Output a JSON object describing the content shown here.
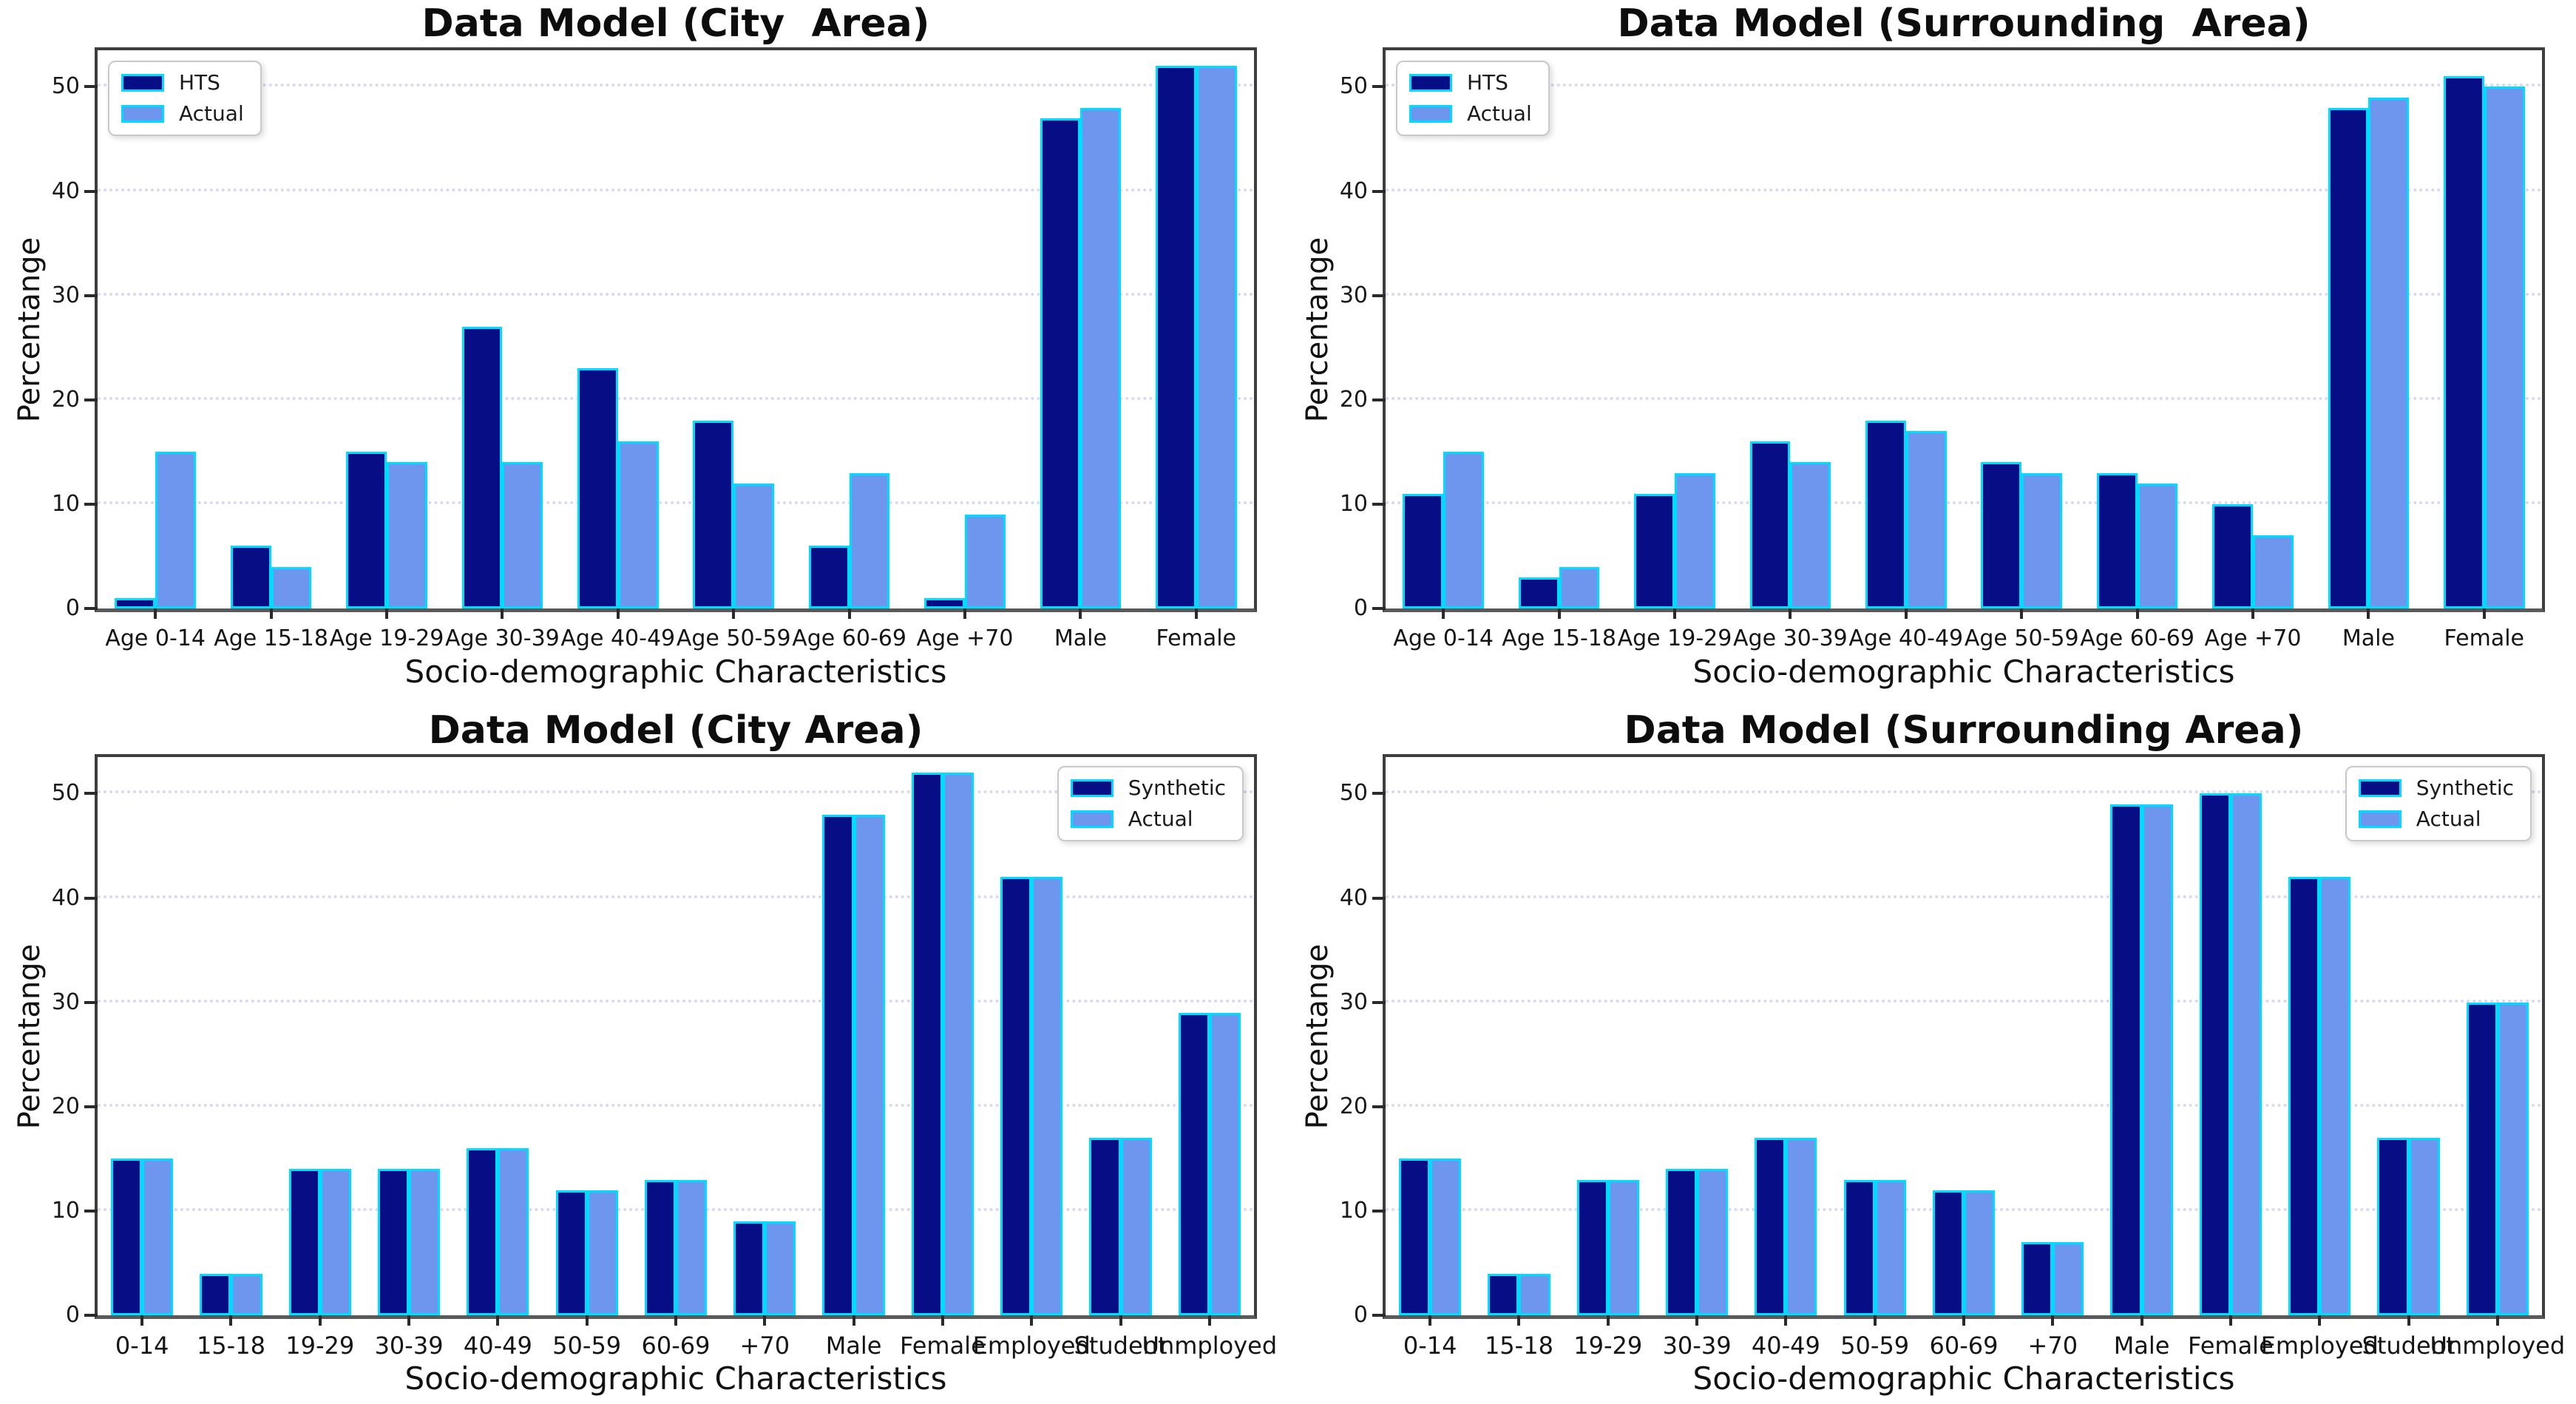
{
  "colors": {
    "dark_series": "#070d84",
    "light_series": "#6e96ef",
    "bar_edge": "#00dcff",
    "gridline": "#d8d8f4",
    "axis_border": "#3e3e3e",
    "background": "#ffffff"
  },
  "chart_data": [
    {
      "type": "bar",
      "position": "top-left",
      "title": "Data Model (City  Area)",
      "xlabel": "Socio-demographic Characteristics",
      "ylabel": "Percentange",
      "ylim": [
        0,
        53.5
      ],
      "yticks": [
        0,
        10,
        20,
        30,
        40,
        50
      ],
      "grid": "horizontal-dotted",
      "legend_position": "upper-left",
      "categories": [
        "Age 0-14",
        "Age 15-18",
        "Age 19-29",
        "Age 30-39",
        "Age 40-49",
        "Age 50-59",
        "Age 60-69",
        "Age +70",
        "Male",
        "Female"
      ],
      "series": [
        {
          "name": "HTS",
          "values": [
            1,
            6,
            15,
            27,
            23,
            18,
            6,
            1,
            47,
            52
          ]
        },
        {
          "name": "Actual",
          "values": [
            15,
            4,
            14,
            14,
            16,
            12,
            13,
            9,
            48,
            52
          ]
        }
      ]
    },
    {
      "type": "bar",
      "position": "top-right",
      "title": "Data Model (Surrounding  Area)",
      "xlabel": "Socio-demographic Characteristics",
      "ylabel": "Percentange",
      "ylim": [
        0,
        53.5
      ],
      "yticks": [
        0,
        10,
        20,
        30,
        40,
        50
      ],
      "grid": "horizontal-dotted",
      "legend_position": "upper-left",
      "categories": [
        "Age 0-14",
        "Age 15-18",
        "Age 19-29",
        "Age 30-39",
        "Age 40-49",
        "Age 50-59",
        "Age 60-69",
        "Age +70",
        "Male",
        "Female"
      ],
      "series": [
        {
          "name": "HTS",
          "values": [
            11,
            3,
            11,
            16,
            18,
            14,
            13,
            10,
            48,
            51
          ]
        },
        {
          "name": "Actual",
          "values": [
            15,
            4,
            13,
            14,
            17,
            13,
            12,
            7,
            49,
            50
          ]
        }
      ]
    },
    {
      "type": "bar",
      "position": "bottom-left",
      "title": "Data Model (City Area)",
      "xlabel": "Socio-demographic Characteristics",
      "ylabel": "Percentange",
      "ylim": [
        0,
        53.5
      ],
      "yticks": [
        0,
        10,
        20,
        30,
        40,
        50
      ],
      "grid": "horizontal-dotted",
      "legend_position": "upper-right",
      "categories": [
        "0-14",
        "15-18",
        "19-29",
        "30-39",
        "40-49",
        "50-59",
        "60-69",
        "+70",
        "Male",
        "Female",
        "Employed",
        "Student",
        "Unmployed"
      ],
      "series": [
        {
          "name": "Synthetic",
          "values": [
            15,
            4,
            14,
            14,
            16,
            12,
            13,
            9,
            48,
            52,
            42,
            17,
            29
          ]
        },
        {
          "name": "Actual",
          "values": [
            15,
            4,
            14,
            14,
            16,
            12,
            13,
            9,
            48,
            52,
            42,
            17,
            29
          ]
        }
      ]
    },
    {
      "type": "bar",
      "position": "bottom-right",
      "title": "Data Model (Surrounding Area)",
      "xlabel": "Socio-demographic Characteristics",
      "ylabel": "Percentange",
      "ylim": [
        0,
        53.5
      ],
      "yticks": [
        0,
        10,
        20,
        30,
        40,
        50
      ],
      "grid": "horizontal-dotted",
      "legend_position": "upper-right",
      "categories": [
        "0-14",
        "15-18",
        "19-29",
        "30-39",
        "40-49",
        "50-59",
        "60-69",
        "+70",
        "Male",
        "Female",
        "Employed",
        "Student",
        "Unmployed"
      ],
      "series": [
        {
          "name": "Synthetic",
          "values": [
            15,
            4,
            13,
            14,
            17,
            13,
            12,
            7,
            49,
            50,
            42,
            17,
            30
          ]
        },
        {
          "name": "Actual",
          "values": [
            15,
            4,
            13,
            14,
            17,
            13,
            12,
            7,
            49,
            50,
            42,
            17,
            30
          ]
        }
      ]
    }
  ]
}
